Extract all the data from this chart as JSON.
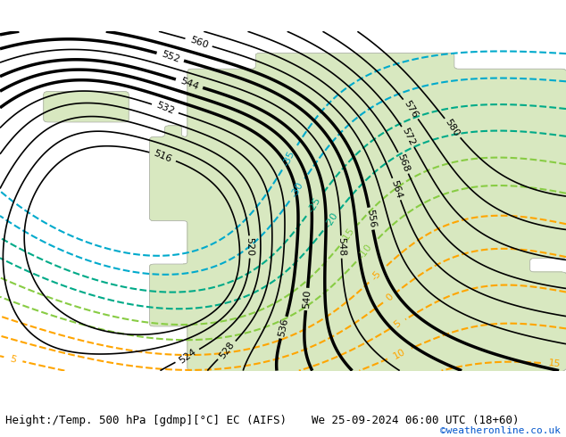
{
  "title_left": "Height:/Temp. 500 hPa [gdmp][°C] EC (AIFS)",
  "title_right": "We 25-09-2024 06:00 UTC (18+60)",
  "copyright": "©weatheronline.co.uk",
  "background_land_color": "#d8e8c0",
  "background_sea_color": "#e8e8e8",
  "coast_color": "#aaaaaa",
  "height_contour_color": "#000000",
  "temp_warm_color": "#ffa500",
  "temp_cold_cyan_color": "#00aacc",
  "temp_cold_teal_color": "#00aa88",
  "temp_green_color": "#88cc44",
  "temp_red_color": "#dd2222",
  "label_fontsize": 8,
  "title_fontsize": 9,
  "copyright_fontsize": 8,
  "copyright_color": "#0055cc",
  "figsize": [
    6.34,
    4.9
  ],
  "dpi": 100
}
